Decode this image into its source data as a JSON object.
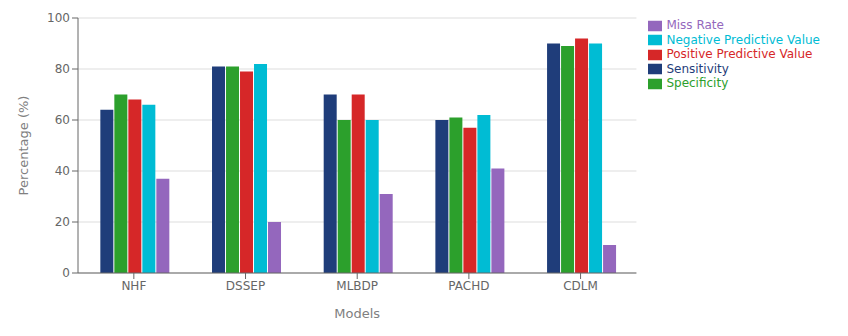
{
  "chart_data": {
    "type": "bar",
    "xlabel": "Models",
    "ylabel": "Percentage (%)",
    "categories": [
      "NHF",
      "DSSEP",
      "MLBDP",
      "PACHD",
      "CDLM"
    ],
    "series": [
      {
        "name": "Sensitivity",
        "color": "#1f3d7a",
        "values": [
          64,
          81,
          70,
          60,
          90
        ]
      },
      {
        "name": "Specificity",
        "color": "#2ca02c",
        "values": [
          70,
          81,
          60,
          61,
          89
        ]
      },
      {
        "name": "Positive Predictive Value",
        "color": "#d62728",
        "values": [
          68,
          79,
          70,
          57,
          92
        ]
      },
      {
        "name": "Negative Predictive Value",
        "color": "#00bcd4",
        "values": [
          66,
          82,
          60,
          62,
          90
        ]
      },
      {
        "name": "Miss Rate",
        "color": "#9467bd",
        "values": [
          37,
          20,
          31,
          41,
          11
        ]
      }
    ],
    "ylim": [
      0,
      100
    ],
    "yticks": [
      0,
      20,
      40,
      60,
      80,
      100
    ],
    "grid": true,
    "legend": "right"
  }
}
